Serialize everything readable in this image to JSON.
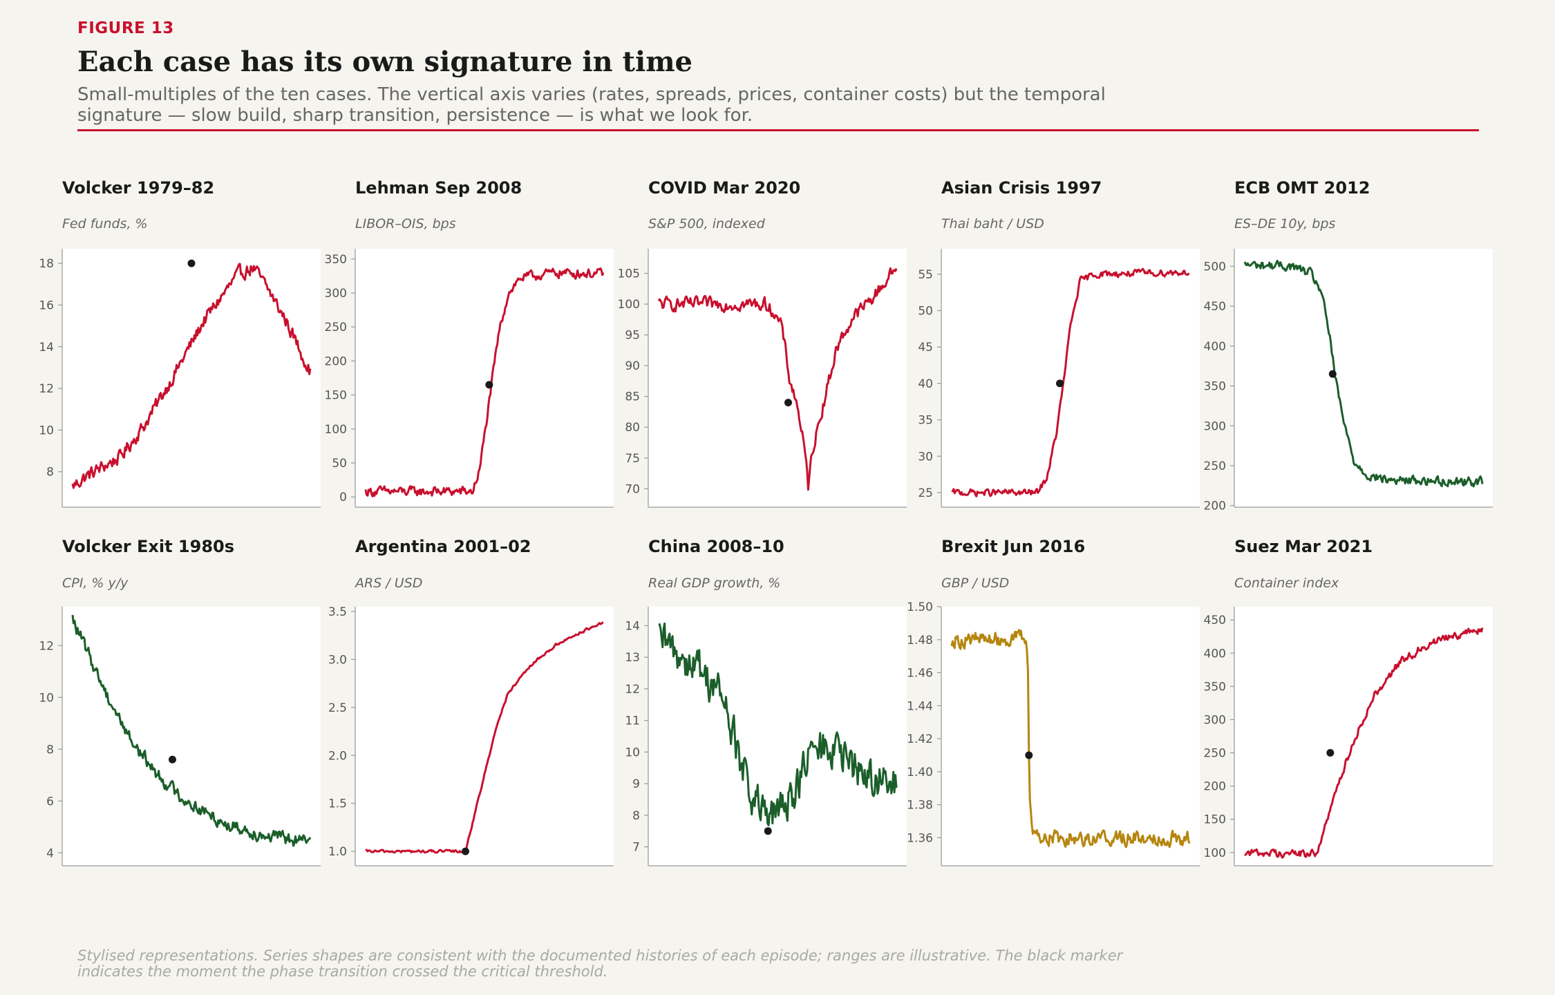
{
  "figure": {
    "label": "FIGURE 13",
    "title": "Each case has its own signature in time",
    "subtitle": "Small-multiples of the ten cases. The vertical axis varies (rates, spreads, prices, container costs) but the temporal signature — slow build, sharp transition, persistence — is what we look for.",
    "footnote": "Stylised representations. Series shapes are consistent with the documented histories of each episode; ranges are illustrative. The black marker indicates the moment the phase transition crossed the critical threshold."
  },
  "colors": {
    "accent": "#c8102e",
    "red": "#c8102e",
    "green": "#1b5e2a",
    "gold": "#b5860f",
    "marker": "#1a1a1a",
    "background": "#f5f4ef"
  },
  "chart_data": [
    {
      "type": "line",
      "title": "Volcker 1979–82",
      "ylabel": "Fed funds, %",
      "ylim": [
        6.3,
        18.7
      ],
      "yticks": [
        8,
        10,
        12,
        14,
        16,
        18
      ],
      "color": "red",
      "noise": 0.28,
      "anchors": [
        [
          0,
          7.3
        ],
        [
          0.06,
          7.8
        ],
        [
          0.2,
          8.7
        ],
        [
          0.3,
          10.2
        ],
        [
          0.42,
          12.5
        ],
        [
          0.55,
          15.2
        ],
        [
          0.62,
          16.3
        ],
        [
          0.7,
          17.5
        ],
        [
          0.76,
          17.8
        ],
        [
          0.82,
          16.8
        ],
        [
          0.9,
          15.2
        ],
        [
          1,
          12.8
        ]
      ],
      "marker": {
        "x": 0.5,
        "y": 18
      }
    },
    {
      "type": "line",
      "title": "Lehman Sep 2008",
      "ylabel": "LIBOR–OIS, bps",
      "ylim": [
        -15,
        365
      ],
      "yticks": [
        0,
        50,
        100,
        150,
        200,
        250,
        300,
        350
      ],
      "color": "red",
      "noise": 6,
      "anchors": [
        [
          0,
          8
        ],
        [
          0.45,
          8
        ],
        [
          0.48,
          40
        ],
        [
          0.52,
          140
        ],
        [
          0.56,
          240
        ],
        [
          0.6,
          300
        ],
        [
          0.65,
          322
        ],
        [
          0.8,
          330
        ],
        [
          1,
          328
        ]
      ],
      "marker": {
        "x": 0.52,
        "y": 165
      }
    },
    {
      "type": "line",
      "title": "COVID Mar 2020",
      "ylabel": "S&P 500, indexed",
      "ylim": [
        67,
        109
      ],
      "yticks": [
        70,
        75,
        80,
        85,
        90,
        95,
        100,
        105
      ],
      "color": "red",
      "noise": 0.9,
      "anchors": [
        [
          0,
          100
        ],
        [
          0.45,
          100
        ],
        [
          0.48,
          99
        ],
        [
          0.52,
          96
        ],
        [
          0.55,
          88
        ],
        [
          0.58,
          84
        ],
        [
          0.6,
          80
        ],
        [
          0.62,
          74
        ],
        [
          0.63,
          70
        ],
        [
          0.645,
          76
        ],
        [
          0.7,
          85
        ],
        [
          0.75,
          93
        ],
        [
          0.82,
          98
        ],
        [
          0.9,
          101
        ],
        [
          1,
          106
        ]
      ],
      "marker": {
        "x": 0.545,
        "y": 84
      }
    },
    {
      "type": "line",
      "title": "Asian Crisis 1997",
      "ylabel": "Thai baht / USD",
      "ylim": [
        23,
        58.5
      ],
      "yticks": [
        25,
        30,
        35,
        40,
        45,
        50,
        55
      ],
      "color": "red",
      "noise": 0.4,
      "anchors": [
        [
          0,
          25
        ],
        [
          0.36,
          25
        ],
        [
          0.4,
          27
        ],
        [
          0.44,
          33
        ],
        [
          0.47,
          40
        ],
        [
          0.5,
          48
        ],
        [
          0.54,
          54
        ],
        [
          0.6,
          55
        ],
        [
          1,
          55.3
        ]
      ],
      "marker": {
        "x": 0.455,
        "y": 40
      }
    },
    {
      "type": "line",
      "title": "ECB OMT 2012",
      "ylabel": "ES–DE 10y, bps",
      "ylim": [
        198,
        522
      ],
      "yticks": [
        200,
        250,
        300,
        350,
        400,
        450,
        500
      ],
      "color": "green",
      "noise": 5,
      "anchors": [
        [
          0,
          502
        ],
        [
          0.2,
          500
        ],
        [
          0.28,
          490
        ],
        [
          0.32,
          470
        ],
        [
          0.36,
          410
        ],
        [
          0.38,
          360
        ],
        [
          0.42,
          300
        ],
        [
          0.46,
          255
        ],
        [
          0.52,
          238
        ],
        [
          0.6,
          232
        ],
        [
          1,
          230
        ]
      ],
      "marker": {
        "x": 0.37,
        "y": 365
      }
    },
    {
      "type": "line",
      "title": "Volcker Exit 1980s",
      "ylabel": "CPI, % y/y",
      "ylim": [
        3.5,
        13.5
      ],
      "yticks": [
        4,
        6,
        8,
        10,
        12
      ],
      "color": "green",
      "noise": 0.22,
      "anchors": [
        [
          0,
          13
        ],
        [
          0.05,
          12
        ],
        [
          0.15,
          10
        ],
        [
          0.25,
          8.3
        ],
        [
          0.35,
          7.1
        ],
        [
          0.45,
          6.2
        ],
        [
          0.55,
          5.6
        ],
        [
          0.65,
          5.1
        ],
        [
          0.8,
          4.7
        ],
        [
          1,
          4.4
        ]
      ],
      "marker": {
        "x": 0.42,
        "y": 7.6
      }
    },
    {
      "type": "line",
      "title": "Argentina 2001–02",
      "ylabel": "ARS / USD",
      "ylim": [
        0.85,
        3.55
      ],
      "yticks": [
        1.0,
        1.5,
        2.0,
        2.5,
        3.0,
        3.5
      ],
      "color": "red",
      "noise": 0.012,
      "anchors": [
        [
          0,
          1
        ],
        [
          0.42,
          1
        ],
        [
          0.44,
          1.2
        ],
        [
          0.5,
          1.8
        ],
        [
          0.55,
          2.3
        ],
        [
          0.6,
          2.65
        ],
        [
          0.7,
          2.95
        ],
        [
          0.8,
          3.15
        ],
        [
          0.9,
          3.28
        ],
        [
          1,
          3.38
        ]
      ],
      "marker": {
        "x": 0.42,
        "y": 1.0
      }
    },
    {
      "type": "line",
      "title": "China 2008–10",
      "ylabel": "Real GDP growth, %",
      "ylim": [
        6.4,
        14.6
      ],
      "yticks": [
        7,
        8,
        9,
        10,
        11,
        12,
        13,
        14
      ],
      "color": "green",
      "noise": 0.55,
      "anchors": [
        [
          0,
          13.5
        ],
        [
          0.15,
          12.8
        ],
        [
          0.25,
          12.0
        ],
        [
          0.3,
          11.0
        ],
        [
          0.35,
          9.5
        ],
        [
          0.4,
          8.5
        ],
        [
          0.46,
          7.8
        ],
        [
          0.52,
          8.2
        ],
        [
          0.58,
          9.0
        ],
        [
          0.65,
          10.0
        ],
        [
          0.72,
          10.2
        ],
        [
          0.8,
          9.6
        ],
        [
          0.9,
          9.2
        ],
        [
          1,
          8.8
        ]
      ],
      "marker": {
        "x": 0.46,
        "y": 7.5
      }
    },
    {
      "type": "line",
      "title": "Brexit Jun 2016",
      "ylabel": "GBP / USD",
      "ylim": [
        1.343,
        1.5
      ],
      "yticks": [
        1.36,
        1.38,
        1.4,
        1.42,
        1.44,
        1.46,
        1.48,
        1.5
      ],
      "color": "gold",
      "noise": 0.004,
      "anchors": [
        [
          0,
          1.48
        ],
        [
          0.3,
          1.481
        ],
        [
          0.32,
          1.475
        ],
        [
          0.325,
          1.41
        ],
        [
          0.33,
          1.38
        ],
        [
          0.34,
          1.365
        ],
        [
          0.38,
          1.36
        ],
        [
          1,
          1.36
        ]
      ],
      "marker": {
        "x": 0.325,
        "y": 1.41
      }
    },
    {
      "type": "line",
      "title": "Suez Mar 2021",
      "ylabel": "Container index",
      "ylim": [
        80,
        470
      ],
      "yticks": [
        100,
        150,
        200,
        250,
        300,
        350,
        400,
        450
      ],
      "color": "red",
      "noise": 5,
      "anchors": [
        [
          0,
          100
        ],
        [
          0.3,
          98
        ],
        [
          0.34,
          140
        ],
        [
          0.4,
          210
        ],
        [
          0.46,
          270
        ],
        [
          0.55,
          340
        ],
        [
          0.65,
          385
        ],
        [
          0.75,
          410
        ],
        [
          0.85,
          425
        ],
        [
          1,
          435
        ]
      ],
      "marker": {
        "x": 0.36,
        "y": 250
      }
    }
  ]
}
